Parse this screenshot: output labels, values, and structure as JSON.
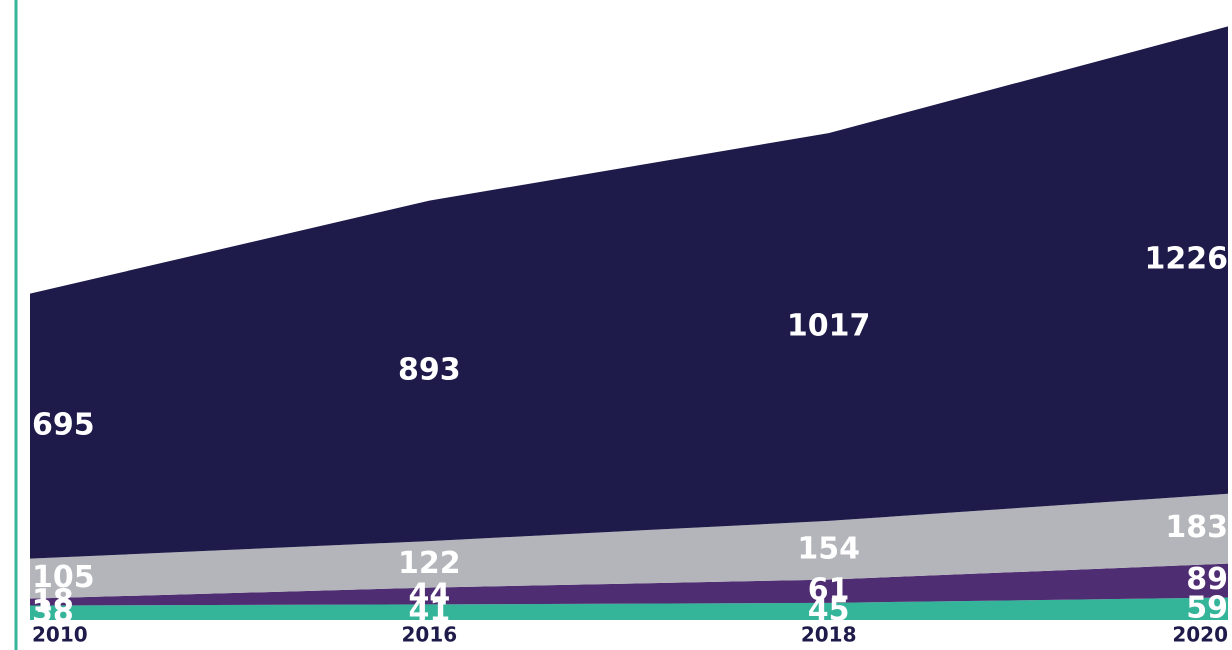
{
  "chart_data": {
    "type": "stacked-area",
    "categories": [
      "2010",
      "2016",
      "2018",
      "2020"
    ],
    "series": [
      {
        "name": "teal",
        "color": "#34b59a",
        "values": [
          38,
          41,
          45,
          59
        ]
      },
      {
        "name": "purple",
        "color": "#4f2d73",
        "values": [
          18,
          44,
          61,
          89
        ]
      },
      {
        "name": "gray",
        "color": "#b4b5ba",
        "values": [
          105,
          122,
          154,
          183
        ]
      },
      {
        "name": "navy",
        "color": "#1e1b4b",
        "values": [
          695,
          893,
          1017,
          1226
        ]
      }
    ],
    "ylim": [
      0,
      1600
    ]
  }
}
